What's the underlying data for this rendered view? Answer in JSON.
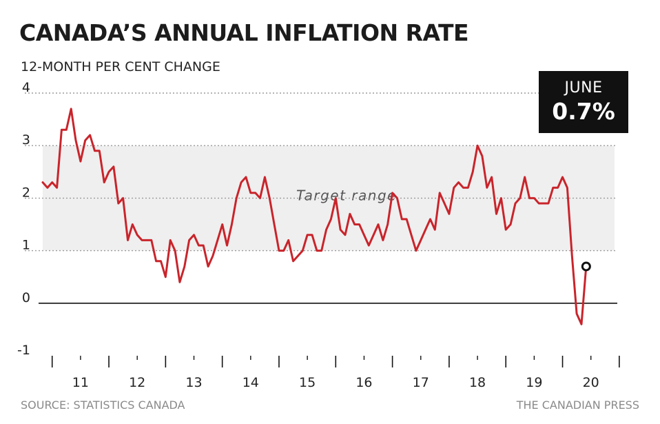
{
  "header": {
    "title": "CANADA’S ANNUAL INFLATION RATE",
    "subtitle": "12-MONTH PER CENT CHANGE"
  },
  "footer": {
    "source": "SOURCE: STATISTICS CANADA",
    "credit": "THE CANADIAN PRESS"
  },
  "callout": {
    "month": "JUNE",
    "value": "0.7%"
  },
  "colors": {
    "line": "#c9242b",
    "band": "#efefef",
    "grid": "#9a9a9a",
    "zero_line": "#111111",
    "callout_bg": "#111111"
  },
  "chart_data": {
    "type": "line",
    "title": "CANADA’S ANNUAL INFLATION RATE",
    "subtitle": "12-MONTH PER CENT CHANGE",
    "ylim": [
      -1,
      4
    ],
    "yticks": [
      -1,
      0,
      1,
      2,
      3,
      4
    ],
    "grid": true,
    "xticks": [
      "11",
      "12",
      "13",
      "14",
      "15",
      "16",
      "17",
      "18",
      "19",
      "20"
    ],
    "xlim": [
      "2010-11",
      "2020-12"
    ],
    "target_band": {
      "label": "Target range",
      "low": 1,
      "high": 3
    },
    "annotation": {
      "x": "2020-06",
      "label": "JUNE",
      "value": "0.7%"
    },
    "series": [
      {
        "x": [
          "2010-11",
          "2010-12",
          "2011-01",
          "2011-02",
          "2011-03",
          "2011-04",
          "2011-05",
          "2011-06",
          "2011-07",
          "2011-08",
          "2011-09",
          "2011-10",
          "2011-11",
          "2011-12",
          "2012-01",
          "2012-02",
          "2012-03",
          "2012-04",
          "2012-05",
          "2012-06",
          "2012-07",
          "2012-08",
          "2012-09",
          "2012-10",
          "2012-11",
          "2012-12",
          "2013-01",
          "2013-02",
          "2013-03",
          "2013-04",
          "2013-05",
          "2013-06",
          "2013-07",
          "2013-08",
          "2013-09",
          "2013-10",
          "2013-11",
          "2013-12",
          "2014-01",
          "2014-02",
          "2014-03",
          "2014-04",
          "2014-05",
          "2014-06",
          "2014-07",
          "2014-08",
          "2014-09",
          "2014-10",
          "2014-11",
          "2014-12",
          "2015-01",
          "2015-02",
          "2015-03",
          "2015-04",
          "2015-05",
          "2015-06",
          "2015-07",
          "2015-08",
          "2015-09",
          "2015-10",
          "2015-11",
          "2015-12",
          "2016-01",
          "2016-02",
          "2016-03",
          "2016-04",
          "2016-05",
          "2016-06",
          "2016-07",
          "2016-08",
          "2016-09",
          "2016-10",
          "2016-11",
          "2016-12",
          "2017-01",
          "2017-02",
          "2017-03",
          "2017-04",
          "2017-05",
          "2017-06",
          "2017-07",
          "2017-08",
          "2017-09",
          "2017-10",
          "2017-11",
          "2017-12",
          "2018-01",
          "2018-02",
          "2018-03",
          "2018-04",
          "2018-05",
          "2018-06",
          "2018-07",
          "2018-08",
          "2018-09",
          "2018-10",
          "2018-11",
          "2018-12",
          "2019-01",
          "2019-02",
          "2019-03",
          "2019-04",
          "2019-05",
          "2019-06",
          "2019-07",
          "2019-08",
          "2019-09",
          "2019-10",
          "2019-11",
          "2019-12",
          "2020-01",
          "2020-02",
          "2020-03",
          "2020-04",
          "2020-05",
          "2020-06"
        ],
        "y": [
          2.3,
          2.2,
          2.3,
          2.2,
          3.3,
          3.3,
          3.7,
          3.1,
          2.7,
          3.1,
          3.2,
          2.9,
          2.9,
          2.3,
          2.5,
          2.6,
          1.9,
          2.0,
          1.2,
          1.5,
          1.3,
          1.2,
          1.2,
          1.2,
          0.8,
          0.8,
          0.5,
          1.2,
          1.0,
          0.4,
          0.7,
          1.2,
          1.3,
          1.1,
          1.1,
          0.7,
          0.9,
          1.2,
          1.5,
          1.1,
          1.5,
          2.0,
          2.3,
          2.4,
          2.1,
          2.1,
          2.0,
          2.4,
          2.0,
          1.5,
          1.0,
          1.0,
          1.2,
          0.8,
          0.9,
          1.0,
          1.3,
          1.3,
          1.0,
          1.0,
          1.4,
          1.6,
          2.0,
          1.4,
          1.3,
          1.7,
          1.5,
          1.5,
          1.3,
          1.1,
          1.3,
          1.5,
          1.2,
          1.5,
          2.1,
          2.0,
          1.6,
          1.6,
          1.3,
          1.0,
          1.2,
          1.4,
          1.6,
          1.4,
          2.1,
          1.9,
          1.7,
          2.2,
          2.3,
          2.2,
          2.2,
          2.5,
          3.0,
          2.8,
          2.2,
          2.4,
          1.7,
          2.0,
          1.4,
          1.5,
          1.9,
          2.0,
          2.4,
          2.0,
          2.0,
          1.9,
          1.9,
          1.9,
          2.2,
          2.2,
          2.4,
          2.2,
          0.9,
          -0.2,
          -0.4,
          0.7
        ]
      }
    ]
  }
}
